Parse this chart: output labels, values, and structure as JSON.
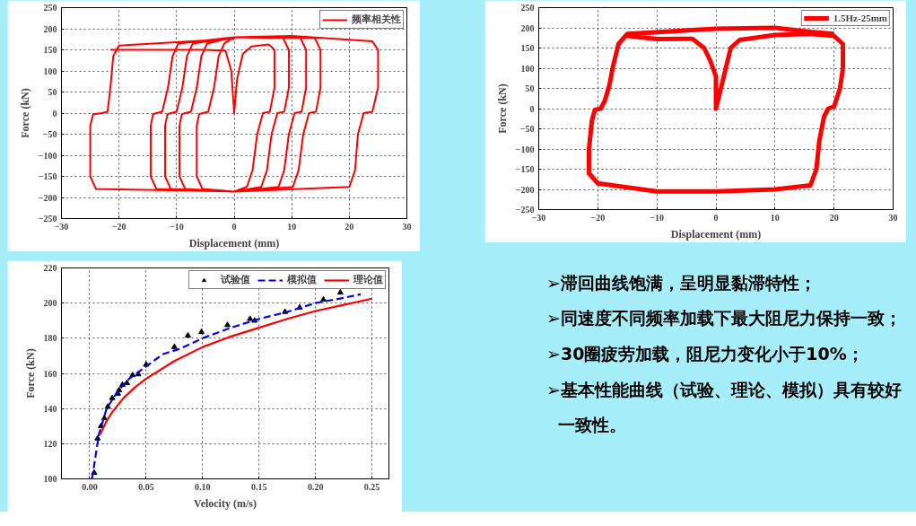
{
  "chart_data": [
    {
      "type": "line",
      "xlabel": "Displacement (mm)",
      "ylabel": "Force (kN)",
      "xlim": [
        -30,
        30
      ],
      "ylim": [
        -250,
        250
      ],
      "xticks": [
        -30,
        -20,
        -10,
        0,
        10,
        20,
        30
      ],
      "yticks": [
        -250,
        -200,
        -150,
        -100,
        -50,
        0,
        50,
        100,
        150,
        200,
        250
      ],
      "grid": true,
      "legend": "top right",
      "series": [
        {
          "name": "频率相关性",
          "color": "#ff0000",
          "x": [
            -21.5,
            -20,
            -5,
            -1.5,
            -0.5,
            0,
            0.5,
            1.5,
            3,
            6,
            7,
            7,
            6.2,
            5,
            4,
            3.2,
            2.2,
            0,
            -5.5,
            -6.5,
            -6.5,
            -6.1,
            -5.5,
            -4.5,
            -3.5,
            -2.7,
            -1.7,
            0,
            6,
            8.5,
            9.5,
            9.5,
            8.7,
            7.5,
            6.5,
            5.7,
            4.7,
            0,
            -8.5,
            -9.5,
            -9.5,
            -9.1,
            -8.5,
            -7.5,
            -6.5,
            -5.7,
            -4.7,
            0,
            11.5,
            12.5,
            12.5,
            11.7,
            10.5,
            9.5,
            8.7,
            7.7,
            0,
            -11,
            -12,
            -12,
            -11.6,
            -11,
            -10,
            -9,
            -8.2,
            -7.2,
            0,
            14,
            15,
            15,
            14.2,
            13,
            12,
            11.2,
            10.2,
            0,
            -13.5,
            -14.5,
            -14.5,
            -14.1,
            -13.5,
            -12.5,
            -11.5,
            -10.7,
            -9.7,
            0,
            10,
            24,
            25,
            25,
            24,
            22.5,
            21.5,
            21,
            20,
            0,
            -24,
            -25,
            -25,
            -24.5,
            -23,
            -22,
            -21.5,
            -21,
            -20,
            0
          ],
          "values": [
            150,
            150,
            150,
            148,
            100,
            0,
            80,
            140,
            158,
            163,
            150,
            60,
            3,
            0,
            -50,
            -135,
            -175,
            -186,
            -180,
            -150,
            -30,
            -3,
            0,
            3,
            60,
            135,
            165,
            180,
            178,
            178,
            150,
            60,
            3,
            0,
            -50,
            -135,
            -175,
            -186,
            -180,
            -150,
            -30,
            -3,
            0,
            3,
            60,
            135,
            165,
            180,
            178,
            150,
            60,
            3,
            0,
            -50,
            -135,
            -175,
            -186,
            -180,
            -150,
            -30,
            -3,
            0,
            3,
            60,
            135,
            165,
            180,
            178,
            150,
            60,
            3,
            0,
            -50,
            -135,
            -175,
            -186,
            -180,
            -150,
            -30,
            -3,
            0,
            3,
            60,
            135,
            165,
            180,
            183,
            170,
            150,
            60,
            3,
            0,
            -50,
            -135,
            -175,
            -186,
            -180,
            -150,
            -30,
            -3,
            0,
            3,
            60,
            135,
            160,
            176
          ]
        }
      ]
    },
    {
      "type": "line",
      "xlabel": "Displacement (mm)",
      "ylabel": "Force (kN)",
      "xlim": [
        -30,
        30
      ],
      "ylim": [
        -250,
        250
      ],
      "xticks": [
        -30,
        -20,
        -10,
        0,
        10,
        20,
        30
      ],
      "yticks": [
        -250,
        -200,
        -150,
        -100,
        -50,
        0,
        50,
        100,
        150,
        200,
        250
      ],
      "grid": true,
      "legend": "top right",
      "series": [
        {
          "name": "1.5Hz-25mm",
          "color": "#ff0000",
          "x": [
            -15,
            -10,
            -4,
            -2,
            -1,
            0,
            0,
            1,
            2.5,
            4,
            10,
            16,
            20,
            21.5,
            21.5,
            21,
            20,
            19,
            18.3,
            17.5,
            17,
            16,
            10,
            0,
            -10,
            -20,
            -21.5,
            -21.5,
            -21,
            -20.5,
            -19.5,
            -18.8,
            -18,
            -17.5,
            -16.5,
            -15,
            0,
            10,
            16,
            20
          ],
          "values": [
            180,
            172,
            173,
            150,
            120,
            80,
            0,
            60,
            150,
            170,
            182,
            185,
            180,
            160,
            100,
            50,
            5,
            0,
            -20,
            -80,
            -150,
            -190,
            -200,
            -205,
            -205,
            -185,
            -160,
            -100,
            -30,
            -3,
            0,
            20,
            60,
            100,
            160,
            185,
            198,
            200,
            190,
            185
          ]
        }
      ]
    },
    {
      "type": "line",
      "xlabel": "Velocity (m/s)",
      "ylabel": "Force (kN)",
      "xlim": [
        -0.025,
        0.265
      ],
      "ylim": [
        100,
        220
      ],
      "xticks": [
        {
          "value": 0,
          "label": "0.00"
        },
        {
          "value": 0.05,
          "label": "0.05"
        },
        {
          "value": 0.1,
          "label": "0.10"
        },
        {
          "value": 0.15,
          "label": "0.15"
        },
        {
          "value": 0.2,
          "label": "0.20"
        },
        {
          "value": 0.25,
          "label": "0.25"
        }
      ],
      "yticks": [
        100,
        120,
        140,
        160,
        180,
        200,
        220
      ],
      "grid": true,
      "legend": "top right",
      "series": [
        {
          "name": "试验值",
          "type": "scatter",
          "marker": "triangle",
          "color": "#000000",
          "x": [
            0.004,
            0.007,
            0.01,
            0.013,
            0.016,
            0.02,
            0.025,
            0.026,
            0.029,
            0.033,
            0.038,
            0.043,
            0.05,
            0.075,
            0.087,
            0.099,
            0.122,
            0.142,
            0.146,
            0.173,
            0.186,
            0.207,
            0.222
          ],
          "values": [
            103.5,
            123,
            130,
            134.5,
            141,
            146,
            148.5,
            150.5,
            153.5,
            154.5,
            159,
            159.5,
            165,
            175,
            181.5,
            183.5,
            187.5,
            191,
            190,
            195,
            197.5,
            202,
            206
          ]
        },
        {
          "name": "模拟值",
          "type": "line",
          "line_style": "dashed",
          "color": "#0000ff",
          "x": [
            0.002,
            0.005,
            0.008,
            0.015,
            0.025,
            0.035,
            0.05,
            0.065,
            0.08,
            0.1,
            0.125,
            0.15,
            0.175,
            0.2,
            0.225,
            0.24
          ],
          "values": [
            100,
            112,
            125,
            140,
            150,
            157,
            164,
            171,
            174,
            180,
            186,
            191,
            195,
            200,
            203,
            205
          ]
        },
        {
          "name": "理论值",
          "type": "line",
          "line_style": "solid",
          "color": "#ff0000",
          "x": [
            0.009,
            0.015,
            0.02,
            0.03,
            0.04,
            0.05,
            0.075,
            0.1,
            0.125,
            0.15,
            0.175,
            0.2,
            0.225,
            0.25
          ],
          "values": [
            125,
            133,
            138,
            146,
            152,
            157,
            167,
            175,
            181,
            186,
            191,
            195.5,
            199,
            202.5
          ]
        }
      ]
    },
    {
      "type": "other",
      "annotations": [
        "➢滞回曲线饱满，呈明显黏滞特性；",
        "➢同速度不同频率加载下最大阻尼力保持一致；",
        "➢30圈疲劳加载，阻尼力变化小于10%；",
        "➢基本性能曲线（试验、理论、模拟）具有较好一致性。"
      ]
    }
  ]
}
